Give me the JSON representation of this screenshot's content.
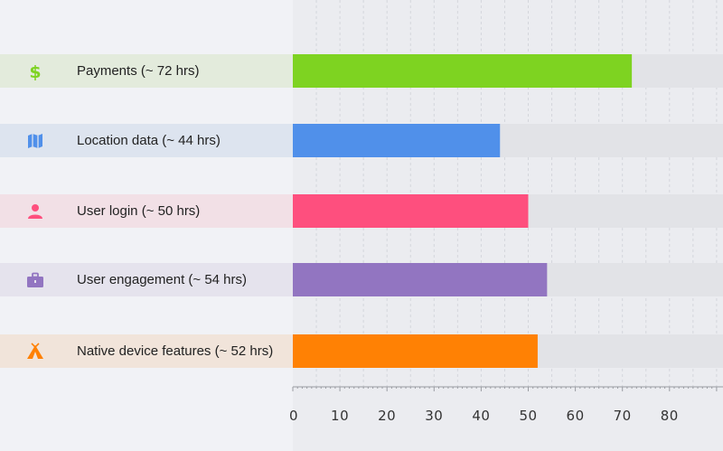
{
  "chart_data": {
    "type": "bar",
    "orientation": "horizontal",
    "categories": [
      "Payments (~ 72 hrs)",
      "Location data (~ 44 hrs)",
      "User login (~ 50 hrs)",
      "User engagement (~ 54 hrs)",
      "Native device features (~ 52 hrs)"
    ],
    "values": [
      72,
      44,
      50,
      54,
      52
    ],
    "colors": [
      "#7ed321",
      "#5090ea",
      "#fe4f7e",
      "#9275c1",
      "#ff8104"
    ],
    "row_background_colors": [
      "#e3ebdc",
      "#dde4ef",
      "#f2e0e6",
      "#e5e3ed",
      "#f1e4da"
    ],
    "icons": [
      "dollar-icon",
      "map-icon",
      "person-icon",
      "briefcase-icon",
      "tent-icon"
    ],
    "x_ticks": [
      0,
      10,
      20,
      30,
      40,
      50,
      60,
      70,
      80
    ],
    "xlim": [
      0,
      90
    ],
    "grid": true,
    "title": "",
    "xlabel": "",
    "ylabel": ""
  }
}
